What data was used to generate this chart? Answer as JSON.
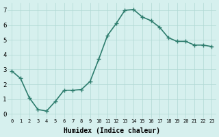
{
  "x": [
    0,
    1,
    2,
    3,
    4,
    5,
    6,
    7,
    8,
    9,
    10,
    11,
    12,
    13,
    14,
    15,
    16,
    17,
    18,
    19,
    20,
    21,
    22,
    23
  ],
  "y": [
    2.9,
    2.4,
    1.1,
    0.3,
    0.2,
    0.85,
    1.6,
    1.6,
    1.65,
    2.2,
    3.7,
    5.3,
    6.1,
    7.0,
    7.05,
    6.55,
    6.3,
    5.85,
    5.15,
    4.9,
    4.9,
    4.65,
    4.65,
    4.55
  ],
  "line_color": "#2e7d6e",
  "marker": "+",
  "marker_size": 5,
  "line_width": 1.2,
  "bg_color": "#d6f0ee",
  "grid_color": "#b0d8d4",
  "xlabel": "Humidex (Indice chaleur)",
  "xlim": [
    -0.5,
    23.5
  ],
  "ylim": [
    -0.3,
    7.5
  ],
  "yticks": [
    0,
    1,
    2,
    3,
    4,
    5,
    6,
    7
  ],
  "xtick_labels": [
    "0",
    "1",
    "2",
    "3",
    "4",
    "5",
    "6",
    "7",
    "8",
    "9",
    "10",
    "11",
    "12",
    "13",
    "14",
    "15",
    "16",
    "17",
    "18",
    "19",
    "20",
    "21",
    "22",
    "23"
  ]
}
